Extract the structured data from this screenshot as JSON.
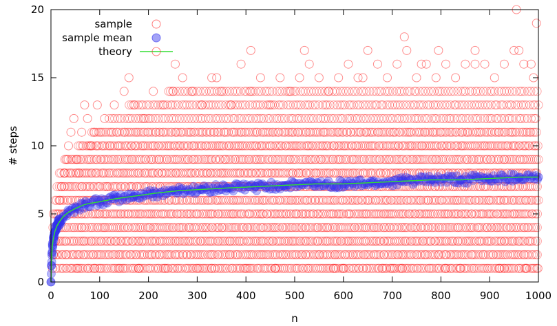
{
  "chart_data": {
    "type": "scatter",
    "xlabel": "n",
    "ylabel": "# steps",
    "xlim": [
      0,
      1000
    ],
    "ylim": [
      0,
      20
    ],
    "xticks": [
      0,
      100,
      200,
      300,
      400,
      500,
      600,
      700,
      800,
      900,
      1000
    ],
    "yticks": [
      0,
      5,
      10,
      15,
      20
    ],
    "xtick_labels": [
      "0",
      "100",
      "200",
      "300",
      "400",
      "500",
      "600",
      "700",
      "800",
      "900",
      "1000"
    ],
    "ytick_labels": [
      "0",
      "5",
      "10",
      "15",
      "20"
    ],
    "grid": false,
    "legend_position": "top-left",
    "colors": {
      "sample": "#ff0000",
      "mean": "#3333ee",
      "theory": "#33dd33"
    },
    "legend": [
      "sample",
      "sample mean",
      "theory"
    ],
    "series": [
      {
        "name": "sample",
        "style": "open-circle",
        "x": [
          3,
          5,
          8,
          12,
          15,
          18,
          22,
          27,
          31,
          36,
          41,
          47,
          52,
          58,
          63,
          69,
          75,
          82,
          88,
          95,
          110,
          130,
          150,
          170,
          190,
          210,
          230,
          250,
          270,
          290,
          310,
          330,
          350,
          370,
          390,
          410,
          430,
          450,
          470,
          490,
          510,
          530,
          550,
          570,
          590,
          610,
          630,
          650,
          670,
          690,
          710,
          730,
          750,
          770,
          790,
          810,
          830,
          850,
          870,
          890,
          910,
          930,
          950,
          970,
          990,
          160,
          255,
          340,
          410,
          520,
          640,
          725,
          760,
          795,
          870,
          955,
          960,
          985,
          996,
          140,
          300,
          400,
          600,
          680,
          720,
          840,
          920,
          975,
          55,
          90,
          180,
          235,
          330,
          460,
          580,
          700,
          810,
          930,
          999
        ],
        "y": [
          1,
          2,
          3,
          4,
          5,
          6,
          7,
          8,
          9,
          10,
          11,
          12,
          9,
          8,
          11,
          13,
          12,
          10,
          11,
          13,
          12,
          13,
          14,
          13,
          12,
          14,
          13,
          14,
          15,
          14,
          13,
          15,
          14,
          13,
          16,
          14,
          15,
          13,
          15,
          14,
          15,
          16,
          15,
          14,
          15,
          16,
          15,
          17,
          16,
          15,
          16,
          17,
          15,
          16,
          15,
          16,
          15,
          16,
          17,
          16,
          15,
          16,
          17,
          16,
          15,
          15,
          16,
          15,
          17,
          17,
          15,
          18,
          16,
          17,
          16,
          20,
          17,
          16,
          19,
          1,
          1,
          1,
          1,
          1,
          1,
          1,
          1,
          1,
          1,
          1,
          1,
          1,
          1,
          1,
          1,
          1,
          1,
          1,
          1
        ]
      },
      {
        "name": "sample mean",
        "style": "filled-circle",
        "x": [
          0,
          1,
          2,
          3,
          5,
          8,
          12,
          17,
          25,
          35,
          50,
          70,
          100,
          130,
          170,
          210,
          260,
          310,
          360,
          420,
          480,
          540,
          600,
          660,
          720,
          780,
          840,
          900,
          960,
          1000
        ],
        "y": [
          0,
          1.2,
          2.1,
          2.7,
          3.2,
          3.7,
          4.1,
          4.4,
          4.8,
          5.1,
          5.4,
          5.7,
          5.9,
          6.1,
          6.3,
          6.5,
          6.7,
          6.8,
          6.9,
          7.0,
          7.1,
          7.2,
          7.2,
          7.3,
          7.4,
          7.5,
          7.5,
          7.6,
          7.7,
          7.7
        ]
      },
      {
        "name": "theory",
        "style": "line"
      }
    ]
  }
}
